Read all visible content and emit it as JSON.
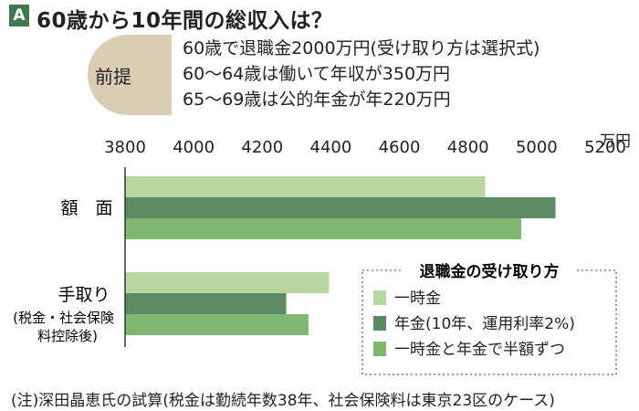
{
  "header": {
    "badge": "A",
    "title": "60歳から10年間の総収入は？"
  },
  "premise": {
    "label": "前提",
    "lines": [
      "60歳で退職金2000万円(受け取り方は選択式)",
      "60〜64歳は働いて年収が350万円",
      "65〜69歳は公的年金が年220万円"
    ]
  },
  "chart_data": {
    "type": "bar",
    "orientation": "horizontal",
    "unit": "万円",
    "xlim": [
      3800,
      5200
    ],
    "ticks": [
      "3800",
      "4000",
      "4200",
      "4400",
      "4600",
      "4800",
      "5000",
      "5200"
    ],
    "categories": [
      "額　面",
      "手取り"
    ],
    "category_note": "(税金・社会保険料控除後)",
    "series": [
      {
        "name": "一時金",
        "color": "#b8d6a0",
        "values": [
          4850,
          4395
        ]
      },
      {
        "name": "年金(10年、運用利率2%)",
        "color": "#5a8b63",
        "values": [
          5055,
          4270
        ]
      },
      {
        "name": "一時金と年金で半額ずつ",
        "color": "#7fb670",
        "values": [
          4955,
          4335
        ]
      }
    ],
    "legend_title": "退職金の受け取り方",
    "legend_position": "bottom-right",
    "grid": false
  },
  "footnote": "(注)深田晶恵氏の試算(税金は勤続年数38年、社会保険料は東京23区のケース)"
}
